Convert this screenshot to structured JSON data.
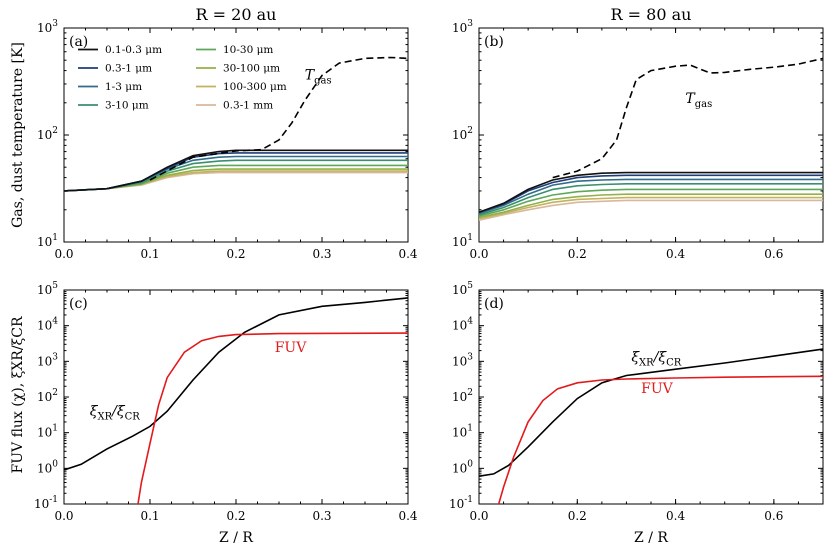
{
  "figure": {
    "ylabel_top": "Gas, dust temperature [K]",
    "ylabel_bottom": "FUV flux (χ), ξXR/ξCR",
    "xlabel": "Z / R"
  },
  "legend": {
    "entries": [
      {
        "label": "0.1-0.3 μm",
        "color": "#111111"
      },
      {
        "label": "0.3-1 μm",
        "color": "#1f3d7a"
      },
      {
        "label": "1-3 μm",
        "color": "#2f6d8a"
      },
      {
        "label": "3-10 μm",
        "color": "#3a8f6e"
      },
      {
        "label": "10-30 μm",
        "color": "#5ea85a"
      },
      {
        "label": "30-100 μm",
        "color": "#94b048"
      },
      {
        "label": "100-300 μm",
        "color": "#c3b35e"
      },
      {
        "label": "0.3-1 mm",
        "color": "#d8b89a"
      }
    ]
  },
  "chart_data": [
    {
      "id": "a",
      "type": "line",
      "title": "R = 20 au",
      "panel_label": "(a)",
      "xlim": [
        0,
        0.4
      ],
      "ylim_log10": [
        1,
        3
      ],
      "yscale": "log",
      "xticks": [
        "0.0",
        "0.1",
        "0.2",
        "0.3",
        "0.4"
      ],
      "xtick_values": [
        0,
        0.1,
        0.2,
        0.3,
        0.4
      ],
      "yticks": [
        "10^1",
        "10^2",
        "10^3"
      ],
      "annotation": {
        "text": "T_gas",
        "x": 0.28,
        "y": 330
      },
      "dust_series": [
        {
          "name": "0.1-0.3 μm",
          "x": [
            0,
            0.05,
            0.09,
            0.12,
            0.15,
            0.18,
            0.2,
            0.4
          ],
          "y": [
            30,
            31.5,
            37,
            50,
            64,
            70,
            72,
            72
          ]
        },
        {
          "name": "0.3-1 μm",
          "x": [
            0,
            0.05,
            0.09,
            0.12,
            0.15,
            0.18,
            0.2,
            0.4
          ],
          "y": [
            30,
            31.5,
            37,
            49,
            62,
            67,
            68,
            68
          ]
        },
        {
          "name": "1-3 μm",
          "x": [
            0,
            0.05,
            0.09,
            0.12,
            0.15,
            0.18,
            0.2,
            0.4
          ],
          "y": [
            30,
            31.5,
            37,
            48,
            58,
            62,
            63,
            63
          ]
        },
        {
          "name": "3-10 μm",
          "x": [
            0,
            0.05,
            0.09,
            0.12,
            0.15,
            0.18,
            0.2,
            0.4
          ],
          "y": [
            30,
            31.5,
            36,
            46,
            54,
            57,
            58,
            58
          ]
        },
        {
          "name": "10-30 μm",
          "x": [
            0,
            0.05,
            0.09,
            0.12,
            0.15,
            0.18,
            0.2,
            0.4
          ],
          "y": [
            30,
            31.5,
            35,
            44,
            50,
            52,
            52,
            52
          ]
        },
        {
          "name": "30-100 μm",
          "x": [
            0,
            0.05,
            0.09,
            0.12,
            0.15,
            0.18,
            0.2,
            0.4
          ],
          "y": [
            30,
            31.5,
            35,
            42,
            46.5,
            48,
            48,
            48
          ]
        },
        {
          "name": "100-300 μm",
          "x": [
            0,
            0.05,
            0.09,
            0.12,
            0.15,
            0.18,
            0.2,
            0.4
          ],
          "y": [
            30,
            31.5,
            34.5,
            41,
            44.5,
            46,
            46,
            46
          ]
        },
        {
          "name": "0.3-1 mm",
          "x": [
            0,
            0.05,
            0.09,
            0.12,
            0.15,
            0.18,
            0.2,
            0.4
          ],
          "y": [
            30,
            31.5,
            34,
            40,
            43.5,
            44.5,
            44.5,
            44.5
          ]
        }
      ],
      "gas_series": {
        "name": "T_gas",
        "x": [
          0.1,
          0.15,
          0.2,
          0.23,
          0.25,
          0.265,
          0.28,
          0.3,
          0.32,
          0.35,
          0.38,
          0.4
        ],
        "y": [
          38,
          62,
          71,
          73,
          90,
          130,
          210,
          360,
          470,
          520,
          530,
          520
        ]
      }
    },
    {
      "id": "b",
      "type": "line",
      "title": "R = 80 au",
      "panel_label": "(b)",
      "xlim": [
        0,
        0.7
      ],
      "ylim_log10": [
        1,
        3
      ],
      "yscale": "log",
      "xticks": [
        "0.0",
        "0.2",
        "0.4",
        "0.6"
      ],
      "xtick_values": [
        0,
        0.2,
        0.4,
        0.6
      ],
      "yticks": [
        "10^1",
        "10^2",
        "10^3"
      ],
      "annotation": {
        "text": "T_gas",
        "x": 0.42,
        "y": 200
      },
      "dust_series": [
        {
          "name": "0.1-0.3 μm",
          "x": [
            0,
            0.05,
            0.1,
            0.15,
            0.2,
            0.25,
            0.3,
            0.7
          ],
          "y": [
            19,
            23,
            31,
            38,
            42,
            44,
            44.5,
            44.5
          ]
        },
        {
          "name": "0.3-1 μm",
          "x": [
            0,
            0.05,
            0.1,
            0.15,
            0.2,
            0.25,
            0.3,
            0.7
          ],
          "y": [
            19,
            22.5,
            30,
            36,
            40,
            41.5,
            42,
            42
          ]
        },
        {
          "name": "1-3 μm",
          "x": [
            0,
            0.05,
            0.1,
            0.15,
            0.2,
            0.25,
            0.3,
            0.7
          ],
          "y": [
            18.5,
            22,
            28,
            34,
            37,
            38,
            38.5,
            38.5
          ]
        },
        {
          "name": "3-10 μm",
          "x": [
            0,
            0.05,
            0.1,
            0.15,
            0.2,
            0.25,
            0.3,
            0.7
          ],
          "y": [
            18,
            21,
            26,
            31,
            33.5,
            34.5,
            35,
            35
          ]
        },
        {
          "name": "10-30 μm",
          "x": [
            0,
            0.05,
            0.1,
            0.15,
            0.2,
            0.25,
            0.3,
            0.7
          ],
          "y": [
            17.5,
            20,
            24,
            27.5,
            29.5,
            30.5,
            31,
            31
          ]
        },
        {
          "name": "30-100 μm",
          "x": [
            0,
            0.05,
            0.1,
            0.15,
            0.2,
            0.25,
            0.3,
            0.7
          ],
          "y": [
            17,
            19,
            22,
            25,
            26.5,
            27.5,
            28,
            28
          ]
        },
        {
          "name": "100-300 μm",
          "x": [
            0,
            0.05,
            0.1,
            0.15,
            0.2,
            0.25,
            0.3,
            0.7
          ],
          "y": [
            16.5,
            18.5,
            21,
            23.5,
            25,
            25.5,
            26,
            26
          ]
        },
        {
          "name": "0.3-1 mm",
          "x": [
            0,
            0.05,
            0.1,
            0.15,
            0.2,
            0.25,
            0.3,
            0.7
          ],
          "y": [
            16,
            18,
            20,
            22,
            23.5,
            24,
            24.5,
            24.5
          ]
        }
      ],
      "gas_series": {
        "name": "T_gas",
        "x": [
          0.15,
          0.2,
          0.25,
          0.28,
          0.3,
          0.32,
          0.35,
          0.4,
          0.43,
          0.47,
          0.5,
          0.55,
          0.6,
          0.65,
          0.7
        ],
        "y": [
          40,
          46,
          60,
          90,
          180,
          330,
          400,
          440,
          450,
          380,
          385,
          410,
          430,
          460,
          520
        ]
      }
    },
    {
      "id": "c",
      "type": "line",
      "panel_label": "(c)",
      "xlim": [
        0,
        0.4
      ],
      "ylim_log10": [
        -1,
        5
      ],
      "yscale": "log",
      "xticks": [
        "0.0",
        "0.1",
        "0.2",
        "0.3",
        "0.4"
      ],
      "xtick_values": [
        0,
        0.1,
        0.2,
        0.3,
        0.4
      ],
      "yticks": [
        "10^-1",
        "10^0",
        "10^1",
        "10^2",
        "10^3",
        "10^4",
        "10^5"
      ],
      "annotations": [
        {
          "text": "FUV",
          "x": 0.245,
          "y": 1800,
          "color": "#e31a1c"
        },
        {
          "text": "ξXR/ξCR",
          "x": 0.03,
          "y": 30,
          "color": "#000000"
        }
      ],
      "series": [
        {
          "name": "ξXR/ξCR",
          "color": "#000000",
          "x": [
            0,
            0.02,
            0.05,
            0.08,
            0.1,
            0.12,
            0.15,
            0.18,
            0.21,
            0.25,
            0.3,
            0.35,
            0.4
          ],
          "y": [
            0.9,
            1.3,
            3.5,
            8,
            15,
            40,
            300,
            1800,
            6500,
            20000,
            35000,
            45000,
            60000
          ]
        },
        {
          "name": "FUV",
          "color": "#e31a1c",
          "x": [
            0.086,
            0.09,
            0.1,
            0.11,
            0.12,
            0.14,
            0.16,
            0.18,
            0.2,
            0.25,
            0.4
          ],
          "y": [
            0.1,
            0.4,
            5,
            60,
            350,
            1800,
            3800,
            5000,
            5600,
            6000,
            6200
          ]
        }
      ]
    },
    {
      "id": "d",
      "type": "line",
      "panel_label": "(d)",
      "xlim": [
        0,
        0.7
      ],
      "ylim_log10": [
        -1,
        5
      ],
      "yscale": "log",
      "xticks": [
        "0.0",
        "0.2",
        "0.4",
        "0.6"
      ],
      "xtick_values": [
        0,
        0.2,
        0.4,
        0.6
      ],
      "yticks": [
        "10^-1",
        "10^0",
        "10^1",
        "10^2",
        "10^3",
        "10^4",
        "10^5"
      ],
      "annotations": [
        {
          "text": "ξXR/ξCR",
          "x": 0.31,
          "y": 1000,
          "color": "#000000"
        },
        {
          "text": "FUV",
          "x": 0.33,
          "y": 130,
          "color": "#e31a1c"
        }
      ],
      "series": [
        {
          "name": "ξXR/ξCR",
          "color": "#000000",
          "x": [
            0,
            0.03,
            0.06,
            0.1,
            0.15,
            0.2,
            0.25,
            0.3,
            0.4,
            0.5,
            0.6,
            0.7
          ],
          "y": [
            0.6,
            0.7,
            1.2,
            4,
            20,
            90,
            250,
            400,
            600,
            900,
            1400,
            2200
          ]
        },
        {
          "name": "FUV",
          "color": "#e31a1c",
          "x": [
            0.04,
            0.05,
            0.07,
            0.1,
            0.13,
            0.16,
            0.2,
            0.25,
            0.3,
            0.4,
            0.5,
            0.6,
            0.7
          ],
          "y": [
            0.1,
            0.3,
            2,
            20,
            80,
            170,
            250,
            300,
            320,
            340,
            360,
            370,
            380
          ]
        }
      ]
    }
  ]
}
